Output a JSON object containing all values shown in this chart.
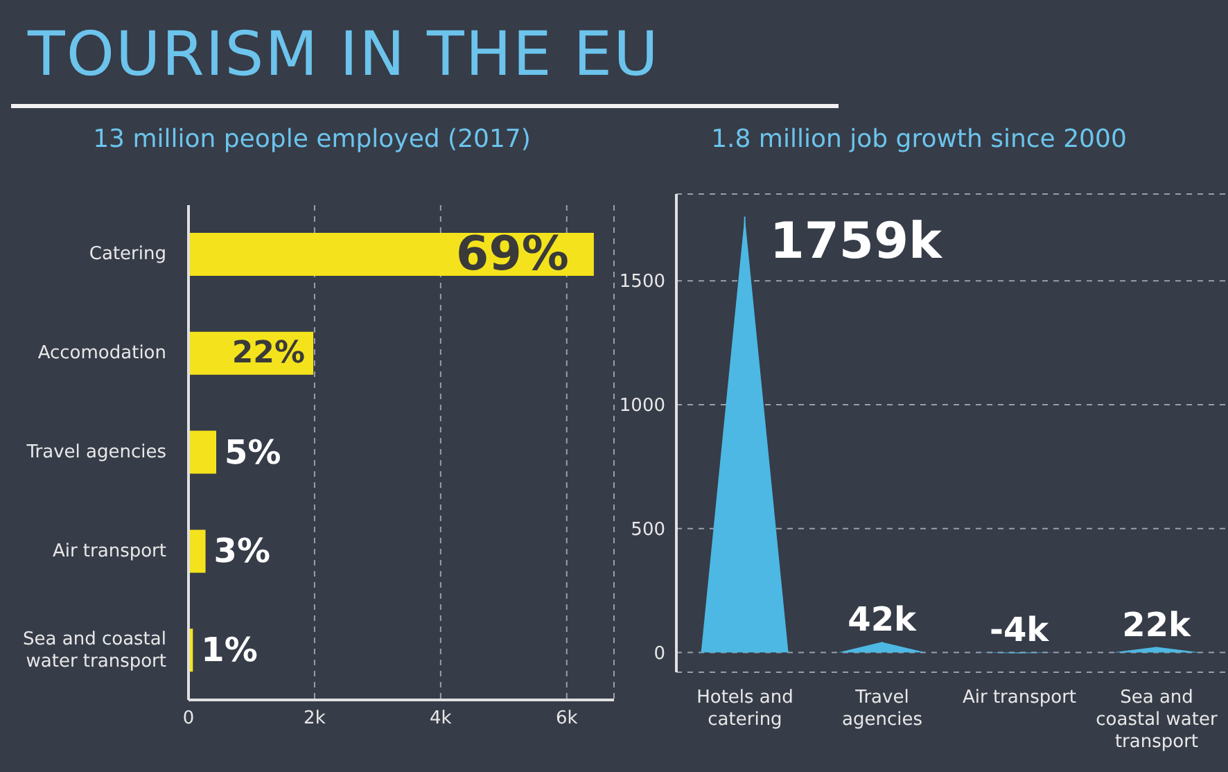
{
  "chart_data": [
    {
      "type": "bar",
      "orientation": "horizontal",
      "title": "TOURISM IN THE EU",
      "subtitle": "13 million people employed (2017)",
      "categories": [
        "Catering",
        "Accomodation",
        "Travel agencies",
        "Air transport",
        "Sea and coastal water transport"
      ],
      "values": [
        6.43,
        1.98,
        0.44,
        0.27,
        0.07
      ],
      "annotations": [
        "69%",
        "22%",
        "5%",
        "3%",
        "1%"
      ],
      "color": "#f4e31c",
      "xlim": [
        0,
        6.75
      ],
      "xticks": [
        0,
        {
          "value": 2,
          "label": "2k"
        },
        {
          "value": 4,
          "label": "4k"
        },
        {
          "value": 6,
          "label": "6k"
        }
      ],
      "grid": "x"
    },
    {
      "type": "bar",
      "title": "1.8 million job growth since 2000",
      "categories": [
        "Hotels and catering",
        "Travel agencies",
        "Air transport",
        "Sea and coastal water transport"
      ],
      "values": [
        1759,
        42,
        -4,
        22
      ],
      "value_labels": [
        "1759k",
        "42k",
        "-4k",
        "22k"
      ],
      "color": "#4db8e3",
      "ylim": [
        -80,
        1850
      ],
      "yticks": [
        0,
        500,
        1000,
        1500
      ],
      "grid": "y"
    }
  ]
}
